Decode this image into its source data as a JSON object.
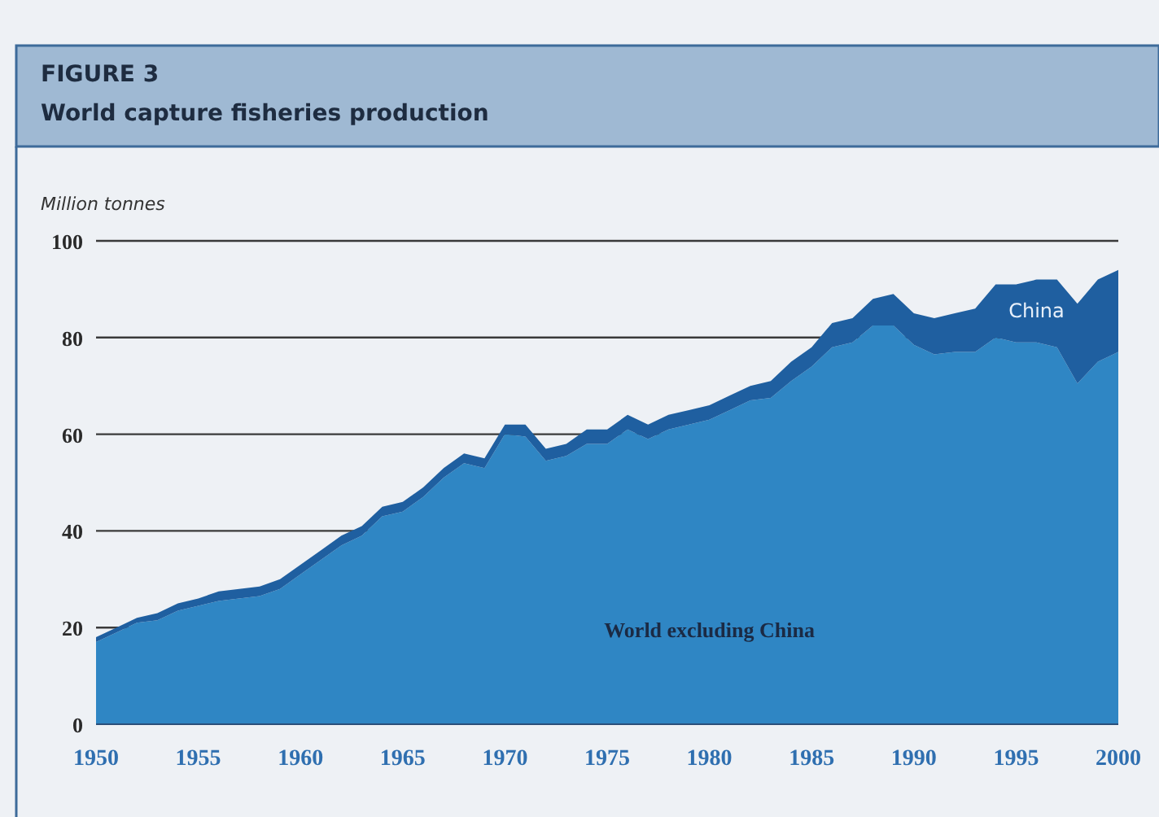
{
  "chart_data": {
    "type": "area",
    "stacked": true,
    "title": "FIGURE 3",
    "subtitle": "World capture fisheries production",
    "ylabel": "Million tonnes",
    "x": [
      1950,
      1951,
      1952,
      1953,
      1954,
      1955,
      1956,
      1957,
      1958,
      1959,
      1960,
      1961,
      1962,
      1963,
      1964,
      1965,
      1966,
      1967,
      1968,
      1969,
      1970,
      1971,
      1972,
      1973,
      1974,
      1975,
      1976,
      1977,
      1978,
      1979,
      1980,
      1981,
      1982,
      1983,
      1984,
      1985,
      1986,
      1987,
      1988,
      1989,
      1990,
      1991,
      1992,
      1993,
      1994,
      1995,
      1996,
      1997,
      1998,
      1999,
      2000
    ],
    "series": [
      {
        "name": "World excluding China",
        "color": "#2f86c4",
        "values": [
          17,
          19,
          21,
          21.5,
          23.5,
          24.5,
          25.5,
          26,
          26.5,
          28,
          31,
          34,
          37,
          39,
          43,
          44,
          47,
          51,
          54,
          53,
          60,
          59.5,
          54.5,
          55.5,
          58,
          58,
          61,
          59,
          61,
          62,
          63,
          65,
          67,
          67.5,
          71,
          74,
          78,
          79,
          82.5,
          82.5,
          78.5,
          76.5,
          77,
          77,
          80,
          79,
          79,
          78,
          70.5,
          75,
          77
        ]
      },
      {
        "name": "China",
        "color": "#1f5fa0",
        "values": [
          1,
          1,
          1,
          1.5,
          1.5,
          1.5,
          2,
          2,
          2,
          2,
          2,
          2,
          2,
          2,
          2,
          2,
          2,
          2,
          2,
          2,
          2,
          2.5,
          2.5,
          2.5,
          3,
          3,
          3,
          3,
          3,
          3,
          3,
          3,
          3,
          3.5,
          4,
          4,
          5,
          5,
          5.5,
          6.5,
          6.5,
          7.5,
          8,
          9,
          11,
          12,
          13,
          14,
          16.5,
          17,
          17
        ]
      }
    ],
    "xlim": [
      1950,
      2000
    ],
    "xticks": [
      1950,
      1955,
      1960,
      1965,
      1970,
      1975,
      1980,
      1985,
      1990,
      1995,
      2000
    ],
    "ylim": [
      0,
      100
    ],
    "yticks": [
      0,
      20,
      40,
      60,
      80,
      100
    ],
    "grid": "y",
    "legend": false
  }
}
